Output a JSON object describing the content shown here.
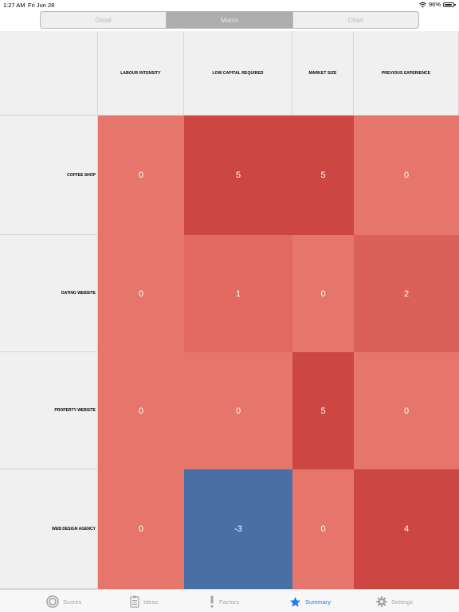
{
  "status_bar": {
    "time": "1:27 AM",
    "date": "Fri Jun 28",
    "battery": "96%"
  },
  "segments": [
    {
      "label": "Detail",
      "active": false
    },
    {
      "label": "Matrix",
      "active": true
    },
    {
      "label": "Chart",
      "active": false
    }
  ],
  "matrix": {
    "columns": [
      "LABOUR INTENSITY",
      "LOW CAPITAL REQUIRED",
      "MARKET SIZE",
      "PREVIOUS EXPERIENCE"
    ],
    "rows": [
      {
        "label": "COFFEE SHOP",
        "values": [
          "0",
          "5",
          "5",
          "0"
        ]
      },
      {
        "label": "DATING WEBSITE",
        "values": [
          "0",
          "1",
          "0",
          "2"
        ]
      },
      {
        "label": "PROPERTY WEBSITE",
        "values": [
          "0",
          "0",
          "5",
          "0"
        ]
      },
      {
        "label": "WEB DESIGN AGENCY",
        "values": [
          "0",
          "-3",
          "0",
          "4"
        ]
      }
    ],
    "colors": {
      "positive_high": "#cc4742",
      "neutral": "#e6766c",
      "negative": "#4a6fa5"
    }
  },
  "tabs": [
    {
      "label": "Scores",
      "icon": "target-icon",
      "active": false
    },
    {
      "label": "Ideas",
      "icon": "clipboard-icon",
      "active": false
    },
    {
      "label": "Factors",
      "icon": "exclamation-icon",
      "active": false
    },
    {
      "label": "Summary",
      "icon": "star-icon",
      "active": true
    },
    {
      "label": "Settings",
      "icon": "gear-icon",
      "active": false
    }
  ],
  "accent_color": "#1f7cf2"
}
